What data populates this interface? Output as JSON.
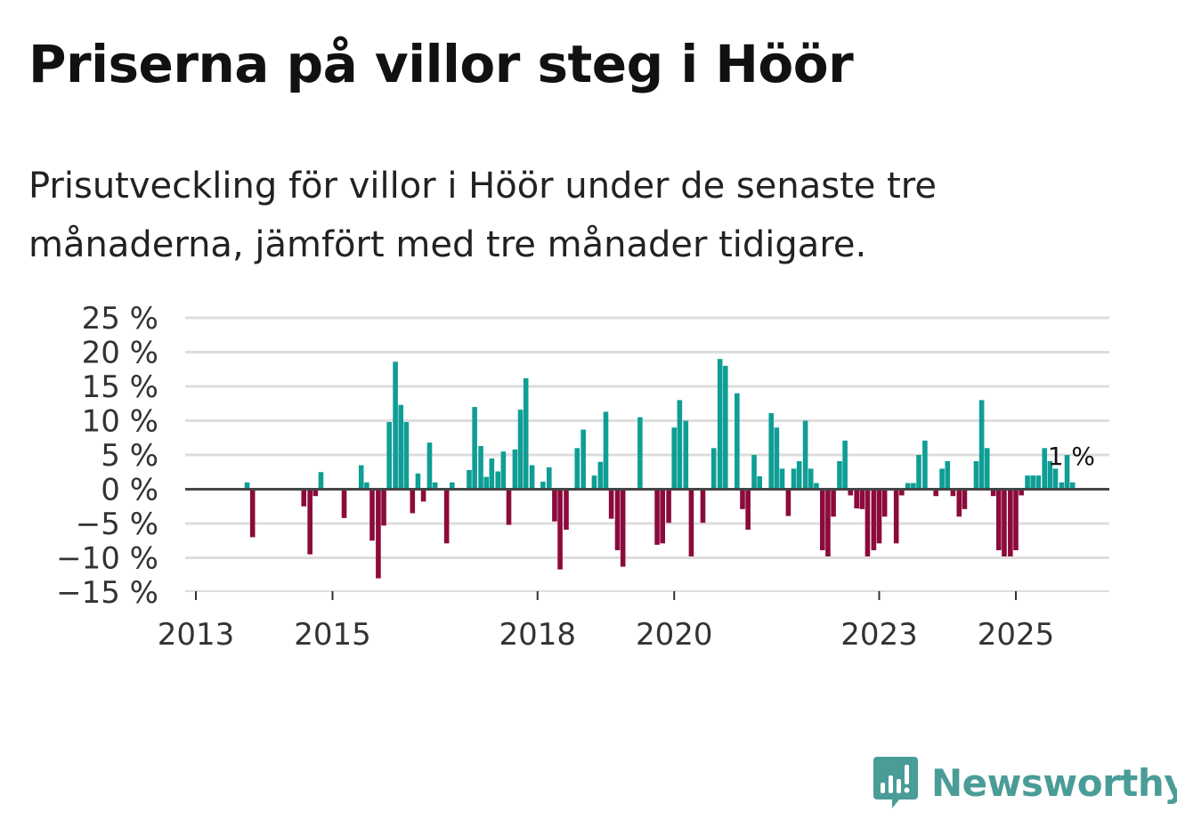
{
  "title": "Priserna på villor steg i Höör",
  "subtitle": "Prisutveckling för villor i Höör under de senaste tre månaderna, jämfört med tre månader tidigare.",
  "brand": {
    "name": "Newsworthy",
    "icon": "newsworthy-logo-icon",
    "color": "#4a9c97"
  },
  "colors": {
    "positive": "#0f9e95",
    "negative": "#8c0a3c",
    "grid": "#dddddd",
    "zero_line": "#444444"
  },
  "chart_data": {
    "type": "bar",
    "title": "Priserna på villor steg i Höör",
    "xlabel": "",
    "ylabel": "",
    "ylim": [
      -15,
      25
    ],
    "xlim": [
      2012.9,
      2026.4
    ],
    "y_ticks": [
      25,
      20,
      15,
      10,
      5,
      0,
      -5,
      -10,
      -15
    ],
    "y_tick_labels": [
      "25 %",
      "20 %",
      "15 %",
      "10 %",
      "5 %",
      "0 %",
      "−5 %",
      "−10 %",
      "−15 %"
    ],
    "x_ticks": [
      2013,
      2015,
      2018,
      2020,
      2023,
      2025
    ],
    "x_tick_labels": [
      "2013",
      "2015",
      "2018",
      "2020",
      "2023",
      "2025"
    ],
    "end_label": "1 %",
    "series": [
      {
        "name": "Prisutveckling",
        "x": [
          2013.75,
          2013.83,
          2014.58,
          2014.67,
          2014.75,
          2014.83,
          2015.17,
          2015.42,
          2015.5,
          2015.58,
          2015.67,
          2015.75,
          2015.83,
          2015.92,
          2016.0,
          2016.08,
          2016.17,
          2016.25,
          2016.33,
          2016.42,
          2016.5,
          2016.67,
          2016.75,
          2017.0,
          2017.08,
          2017.17,
          2017.25,
          2017.33,
          2017.42,
          2017.5,
          2017.58,
          2017.67,
          2017.75,
          2017.83,
          2017.92,
          2018.08,
          2018.17,
          2018.25,
          2018.33,
          2018.42,
          2018.58,
          2018.67,
          2018.83,
          2018.92,
          2019.0,
          2019.08,
          2019.17,
          2019.25,
          2019.5,
          2019.75,
          2019.83,
          2019.92,
          2020.0,
          2020.08,
          2020.17,
          2020.25,
          2020.42,
          2020.58,
          2020.67,
          2020.75,
          2020.92,
          2021.0,
          2021.08,
          2021.17,
          2021.25,
          2021.42,
          2021.5,
          2021.58,
          2021.67,
          2021.75,
          2021.83,
          2021.92,
          2022.0,
          2022.08,
          2022.17,
          2022.25,
          2022.33,
          2022.42,
          2022.5,
          2022.58,
          2022.67,
          2022.75,
          2022.83,
          2022.92,
          2023.0,
          2023.08,
          2023.25,
          2023.33,
          2023.42,
          2023.5,
          2023.58,
          2023.67,
          2023.83,
          2023.92,
          2024.0,
          2024.08,
          2024.17,
          2024.25,
          2024.42,
          2024.5,
          2024.58,
          2024.67,
          2024.75,
          2024.83,
          2024.92,
          2025.0,
          2025.08,
          2025.17,
          2025.25,
          2025.33,
          2025.42,
          2025.5,
          2025.58,
          2025.67,
          2025.75,
          2025.83
        ],
        "values": [
          1,
          -7,
          -2.5,
          -9.5,
          -1,
          2.5,
          -4.2,
          3.5,
          1,
          -7.5,
          -13,
          -5.3,
          9.8,
          18.6,
          12.3,
          9.8,
          -3.5,
          2.3,
          -1.8,
          6.8,
          1,
          -7.9,
          1,
          2.8,
          12,
          6.3,
          1.8,
          4.5,
          2.6,
          5.5,
          -5.2,
          5.8,
          11.6,
          16.2,
          3.5,
          1.1,
          3.2,
          -4.7,
          -11.7,
          -5.9,
          6,
          8.7,
          2,
          4,
          11.3,
          -4.3,
          -8.9,
          -11.3,
          10.5,
          -8.1,
          -7.9,
          -4.9,
          9,
          13,
          10,
          -9.8,
          -4.9,
          6,
          19,
          18,
          14,
          -2.9,
          -5.9,
          5,
          1.9,
          11.1,
          9,
          3,
          -3.9,
          3,
          4.1,
          10,
          3,
          0.9,
          -8.9,
          -9.8,
          -4,
          4.1,
          7.1,
          -0.9,
          -2.8,
          -2.9,
          -9.8,
          -8.9,
          -7.9,
          -4,
          -7.9,
          -0.9,
          0.9,
          0.9,
          5,
          7.1,
          -1,
          3,
          4.1,
          -1,
          -4,
          -2.9,
          4.1,
          13,
          6,
          -1,
          -8.9,
          -9.8,
          -9.8,
          -8.9,
          -0.9,
          2,
          2,
          2,
          6,
          4.1,
          3,
          1,
          5,
          1
        ]
      }
    ]
  }
}
